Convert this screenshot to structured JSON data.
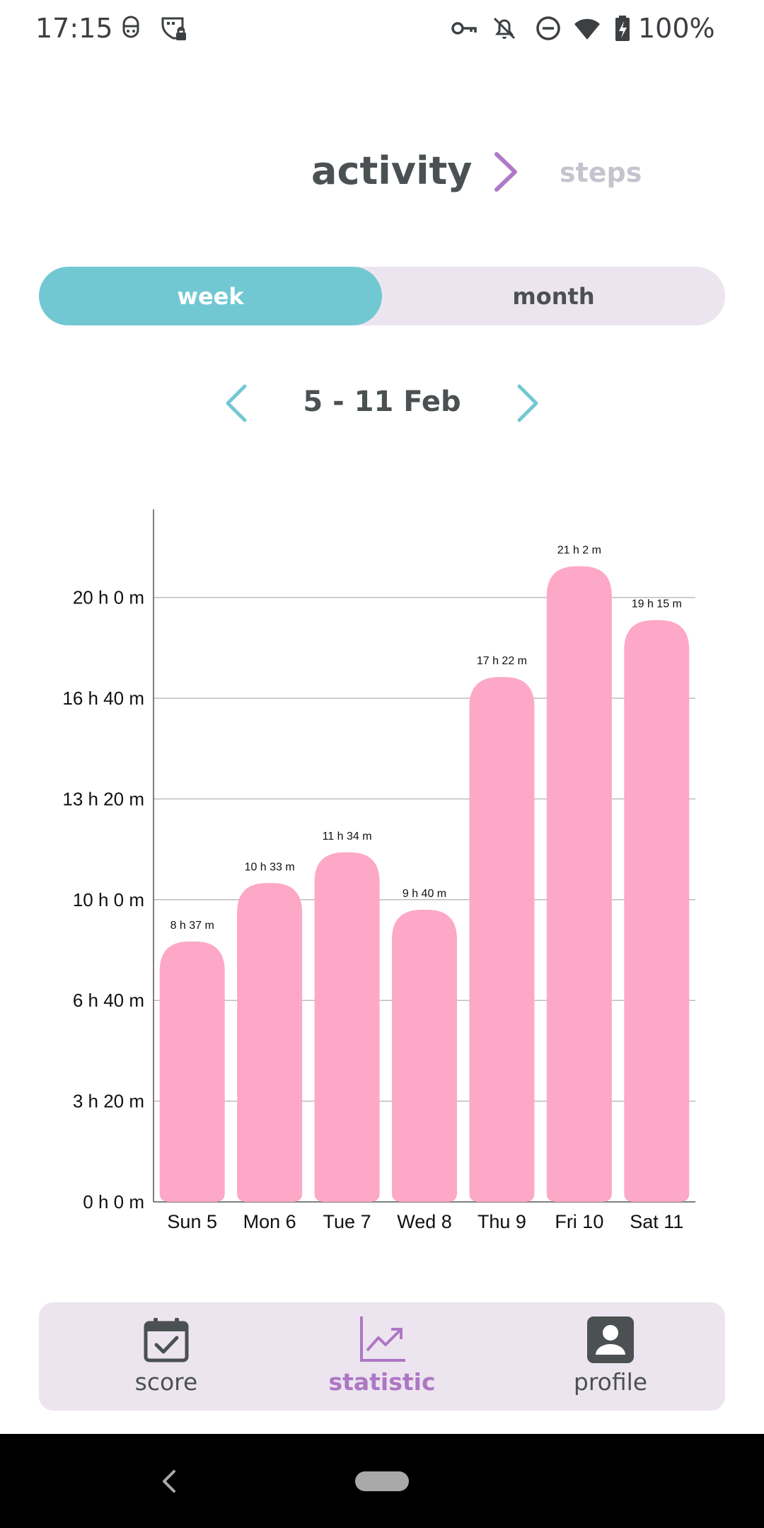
{
  "status_bar": {
    "time": "17:15",
    "battery": "100%",
    "icons": [
      "face-icon",
      "vpn-lock-icon",
      "key-icon",
      "notifications-off-icon",
      "do-not-disturb-icon",
      "wifi-icon",
      "battery-charging-icon"
    ]
  },
  "header": {
    "title": "activity",
    "next_label": "steps",
    "chevron_color": "#b07ac6"
  },
  "period_toggle": {
    "week_label": "week",
    "month_label": "month",
    "selected": "week",
    "active_color": "#72c8d2"
  },
  "date_nav": {
    "range": "5 - 11 Feb",
    "arrow_color": "#72c8d2"
  },
  "chart_data": {
    "type": "bar",
    "categories": [
      "Sun 5",
      "Mon 6",
      "Tue 7",
      "Wed 8",
      "Thu 9",
      "Fri 10",
      "Sat 11"
    ],
    "values": [
      517,
      633,
      694,
      580,
      1042,
      1262,
      1155
    ],
    "value_unit": "minutes",
    "value_labels": [
      "8 h 37 m",
      "10 h 33 m",
      "11 h 34 m",
      "9 h 40 m",
      "17 h 22 m",
      "21 h 2 m",
      "19 h 15 m"
    ],
    "y_ticks": [
      0,
      200,
      400,
      600,
      800,
      1000,
      1200
    ],
    "y_tick_labels": [
      "0 h 0 m",
      "3 h 20 m",
      "6 h 40 m",
      "10 h 0 m",
      "13 h 20 m",
      "16 h 40 m",
      "20 h 0 m"
    ],
    "ylim": [
      0,
      1375
    ],
    "bar_color": "#fda8c6",
    "grid": true,
    "title": "",
    "xlabel": "",
    "ylabel": ""
  },
  "bottom_nav": {
    "items": [
      {
        "label": "score",
        "icon": "calendar-check-icon"
      },
      {
        "label": "statistic",
        "icon": "chart-line-icon",
        "active": true
      },
      {
        "label": "profile",
        "icon": "person-icon"
      }
    ],
    "active_color": "#ad77c4"
  }
}
